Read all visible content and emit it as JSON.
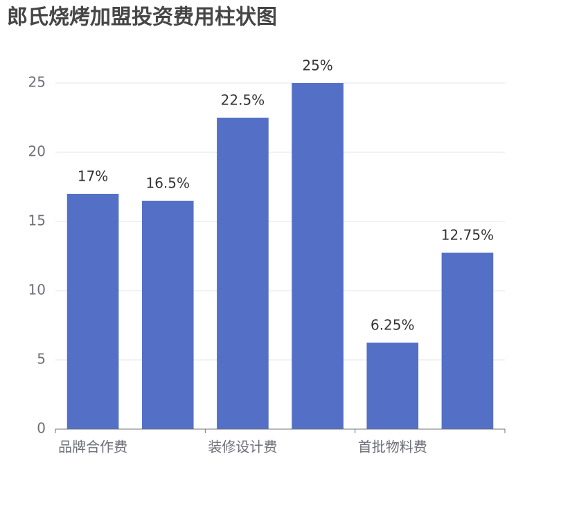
{
  "chart_data": {
    "type": "bar",
    "title": "郎氏烧烤加盟投资费用柱状图",
    "categories": [
      "品牌合作费",
      null,
      "装修设计费",
      null,
      "首批物料费",
      null
    ],
    "values": [
      17,
      16.5,
      22.5,
      25,
      6.25,
      12.75
    ],
    "value_labels": [
      "17%",
      "16.5%",
      "22.5%",
      "25%",
      "6.25%",
      "12.75%"
    ],
    "color": "#5470c6",
    "ylim": [
      0,
      25
    ],
    "yticks": [
      0,
      5,
      10,
      15,
      20,
      25
    ],
    "grid": true
  }
}
